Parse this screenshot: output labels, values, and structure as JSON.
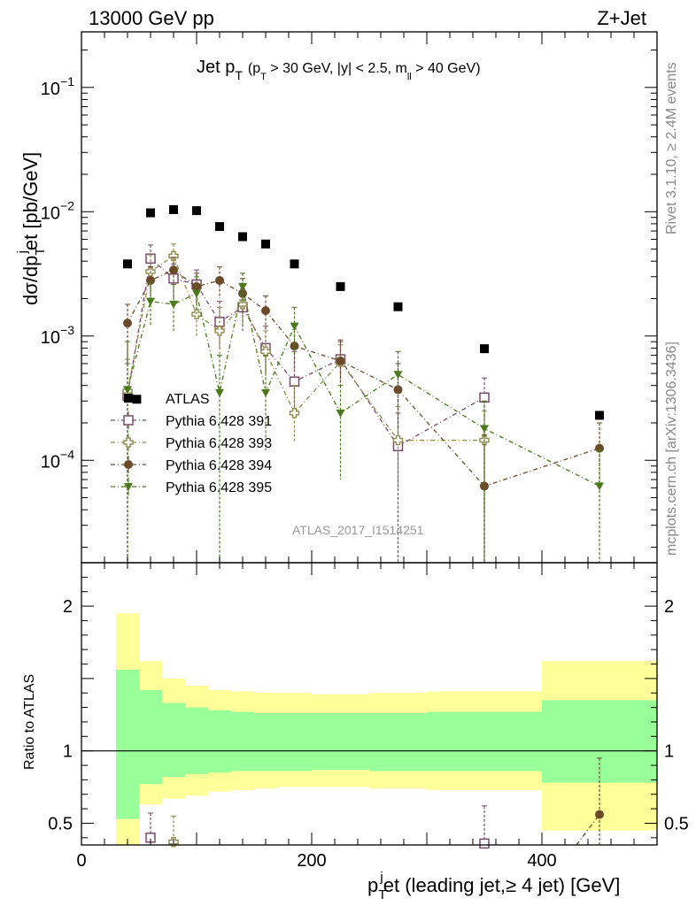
{
  "header": {
    "left": "13000 GeV pp",
    "right": "Z+Jet"
  },
  "title": {
    "main": "Jet p",
    "main_sub": "T",
    "cond_a": "(p",
    "cond_a_sub": "T",
    "cond_b": " > 30 GeV, |y| < 2.5, m",
    "cond_b_sub": "ll",
    "cond_c": " > 40 GeV)"
  },
  "side_text": {
    "rivet": "Rivet 3.1.10, ≥ 2.4M events",
    "mcplots": "mcplots.cern.ch [arXiv:1306.3436]"
  },
  "watermark": "ATLAS_2017_I1514251",
  "ylabel_main": {
    "a": "dσ/dp",
    "a_sub": "T",
    "a_sup": "j",
    "b": "et [pb/GeV]"
  },
  "ylabel_ratio": "Ratio to ATLAS",
  "xlabel": {
    "a": "p",
    "a_sub": "T",
    "a_sup": "j",
    "b": "et (leading jet,≥ 4 jet) [GeV]"
  },
  "y_ticks_main": [
    {
      "base": "10",
      "exp": "−1",
      "value": 0.1
    },
    {
      "base": "10",
      "exp": "−2",
      "value": 0.01
    },
    {
      "base": "10",
      "exp": "−3",
      "value": 0.001
    },
    {
      "base": "10",
      "exp": "−4",
      "value": 0.0001
    }
  ],
  "y_ticks_ratio": [
    {
      "label": "2",
      "value": 2
    },
    {
      "label": "1",
      "value": 1
    },
    {
      "label": "0.5",
      "value": 0.5
    }
  ],
  "x_ticks": [
    {
      "label": "0",
      "value": 0
    },
    {
      "label": "200",
      "value": 200
    },
    {
      "label": "400",
      "value": 400
    }
  ],
  "legend": [
    {
      "label": "ATLAS",
      "series": "atlas"
    },
    {
      "label": "Pythia 6.428 391",
      "series": "p391"
    },
    {
      "label": "Pythia 6.428 393",
      "series": "p393"
    },
    {
      "label": "Pythia 6.428 394",
      "series": "p394"
    },
    {
      "label": "Pythia 6.428 395",
      "series": "p395"
    }
  ],
  "chart_data": {
    "type": "scatter",
    "xlim": [
      0,
      500
    ],
    "ylim_main": [
      1.5e-05,
      0.28
    ],
    "ylim_ratio": [
      0.35,
      2.3
    ],
    "bins": [
      {
        "lo": 30,
        "hi": 50
      },
      {
        "lo": 50,
        "hi": 70
      },
      {
        "lo": 70,
        "hi": 90
      },
      {
        "lo": 90,
        "hi": 110
      },
      {
        "lo": 110,
        "hi": 130
      },
      {
        "lo": 130,
        "hi": 150
      },
      {
        "lo": 150,
        "hi": 170
      },
      {
        "lo": 170,
        "hi": 200
      },
      {
        "lo": 200,
        "hi": 250
      },
      {
        "lo": 250,
        "hi": 300
      },
      {
        "lo": 300,
        "hi": 400
      },
      {
        "lo": 400,
        "hi": 500
      }
    ],
    "x": [
      40,
      60,
      80,
      100,
      120,
      140,
      160,
      185,
      225,
      275,
      350,
      450
    ],
    "atlas": [
      0.0038,
      0.0098,
      0.0104,
      0.0102,
      0.0076,
      0.0063,
      0.0055,
      0.0038,
      0.0025,
      0.00172,
      0.00079,
      0.00023
    ],
    "atlas_extra_point": {
      "x": 48,
      "y": 0.00031
    },
    "band_inner": [
      [
        0.53,
        1.56
      ],
      [
        0.77,
        1.42
      ],
      [
        0.82,
        1.33
      ],
      [
        0.84,
        1.3
      ],
      [
        0.85,
        1.28
      ],
      [
        0.86,
        1.27
      ],
      [
        0.86,
        1.26
      ],
      [
        0.86,
        1.26
      ],
      [
        0.87,
        1.26
      ],
      [
        0.86,
        1.26
      ],
      [
        0.86,
        1.27
      ],
      [
        0.78,
        1.35
      ]
    ],
    "band_outer": [
      [
        0.3,
        1.95
      ],
      [
        0.63,
        1.62
      ],
      [
        0.67,
        1.5
      ],
      [
        0.69,
        1.45
      ],
      [
        0.72,
        1.42
      ],
      [
        0.73,
        1.41
      ],
      [
        0.74,
        1.4
      ],
      [
        0.75,
        1.4
      ],
      [
        0.75,
        1.39
      ],
      [
        0.74,
        1.4
      ],
      [
        0.73,
        1.41
      ],
      [
        0.45,
        1.62
      ]
    ],
    "series": [
      {
        "name": "Pythia 6.428 391",
        "key": "p391",
        "color": "#7b4a6b",
        "marker": "open-square",
        "x": [
          40,
          60,
          80,
          100,
          120,
          140,
          160,
          185,
          225,
          275,
          350
        ],
        "y": [
          0.00033,
          0.0042,
          0.0029,
          0.0026,
          0.0013,
          0.0017,
          0.0008,
          0.00043,
          0.00065,
          0.00013,
          0.00032
        ],
        "err_hi": [
          0.0006,
          0.0054,
          0.0038,
          0.0034,
          0.0019,
          0.0024,
          0.0012,
          0.00075,
          0.0009,
          0.00024,
          0.00046
        ],
        "err_lo": [
          1.5e-05,
          0.0031,
          0.002,
          0.0018,
          0.0008,
          0.0011,
          0.0005,
          0.00025,
          0.00045,
          1.5e-05,
          1.5e-05
        ],
        "ratio_x": [
          60,
          350
        ],
        "ratio_y": [
          0.4,
          0.36
        ],
        "ratio_err_hi": [
          0.57,
          0.62
        ],
        "ratio_err_lo": [
          0.35,
          0.35
        ]
      },
      {
        "name": "Pythia 6.428 393",
        "key": "p393",
        "color": "#8f8a4a",
        "marker": "open-cross",
        "x": [
          40,
          60,
          80,
          100,
          120,
          140,
          160,
          185,
          225,
          275,
          350
        ],
        "y": [
          0.00036,
          0.0033,
          0.0044,
          0.0015,
          0.0011,
          0.0018,
          0.00075,
          0.00024,
          0.00062,
          0.000145,
          0.000145
        ],
        "err_hi": [
          0.00065,
          0.0045,
          0.0055,
          0.0022,
          0.0017,
          0.0025,
          0.0011,
          0.0004,
          0.00085,
          0.00027,
          0.00025
        ],
        "err_lo": [
          1.5e-05,
          0.0023,
          0.0033,
          0.001,
          0.0007,
          0.0012,
          0.0005,
          0.00014,
          0.00042,
          6e-05,
          1.5e-05
        ],
        "ratio_x": [
          80
        ],
        "ratio_y": [
          0.37
        ],
        "ratio_err_hi": [
          0.55
        ],
        "ratio_err_lo": [
          0.35
        ]
      },
      {
        "name": "Pythia 6.428 394",
        "key": "p394",
        "color": "#6b4a2a",
        "marker": "filled-circle",
        "x": [
          40,
          60,
          80,
          100,
          120,
          140,
          160,
          185,
          225,
          275,
          350,
          450
        ],
        "y": [
          0.00127,
          0.0028,
          0.0034,
          0.0025,
          0.0028,
          0.0022,
          0.0016,
          0.00083,
          0.00063,
          0.00037,
          6.2e-05,
          0.000125
        ],
        "err_hi": [
          0.0018,
          0.0036,
          0.0043,
          0.0032,
          0.0036,
          0.0029,
          0.0021,
          0.0012,
          0.00093,
          0.0006,
          0.00016,
          0.0002
        ],
        "err_lo": [
          0.0006,
          0.002,
          0.0026,
          0.0018,
          0.002,
          0.0015,
          0.0011,
          0.00052,
          0.0004,
          0.00018,
          1.5e-05,
          6e-05
        ],
        "ratio_x": [
          450
        ],
        "ratio_y": [
          0.56
        ],
        "ratio_err_hi": [
          0.95
        ],
        "ratio_err_lo": [
          0.35
        ]
      },
      {
        "name": "Pythia 6.428 395",
        "key": "p395",
        "color": "#4a7a1a",
        "marker": "filled-triangle-down",
        "x": [
          40,
          60,
          80,
          100,
          120,
          140,
          160,
          185,
          225,
          275,
          350,
          450
        ],
        "y": [
          0.00037,
          0.0019,
          0.0018,
          0.0022,
          0.00035,
          0.0025,
          0.00035,
          0.0012,
          0.00024,
          0.00049,
          0.00018,
          6.2e-05
        ],
        "err_hi": [
          0.0009,
          0.0027,
          0.0026,
          0.003,
          0.0007,
          0.0032,
          0.0007,
          0.0017,
          0.0004,
          0.00075,
          0.0003,
          0.00012
        ],
        "err_lo": [
          1.5e-05,
          0.0012,
          0.0011,
          0.0015,
          1.5e-05,
          0.0018,
          0.00012,
          0.0007,
          7e-05,
          0.00025,
          4e-05,
          1.5e-05
        ],
        "ratio_x": [],
        "ratio_y": [],
        "ratio_err_hi": [],
        "ratio_err_lo": []
      }
    ],
    "colors": {
      "band_inner": "#99ff99",
      "band_outer": "#ffff99",
      "atlas": "#000000"
    }
  }
}
